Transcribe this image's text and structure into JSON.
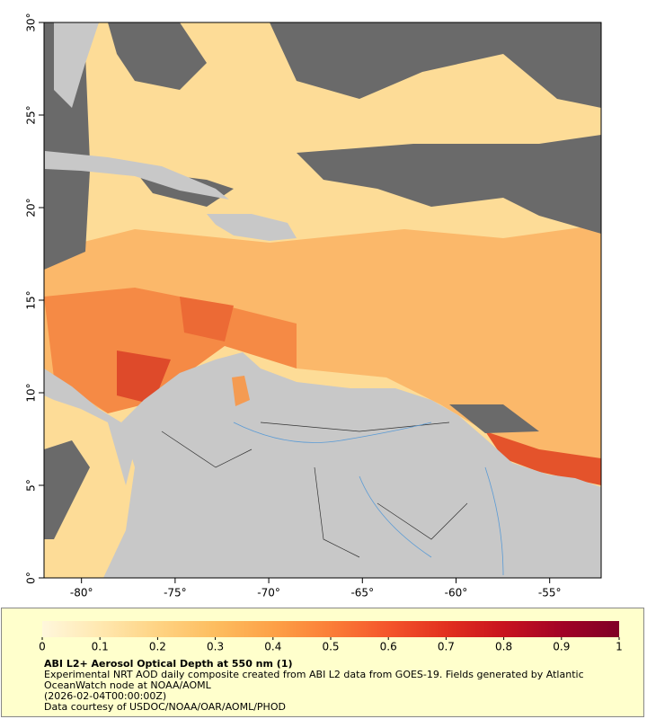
{
  "map": {
    "xlim": [
      -82,
      -52.25
    ],
    "ylim": [
      0,
      30
    ],
    "xticks": [
      {
        "value": -80,
        "label": "-80°"
      },
      {
        "value": -75,
        "label": "-75°"
      },
      {
        "value": -70,
        "label": "-70°"
      },
      {
        "value": -65,
        "label": "-65°"
      },
      {
        "value": -60,
        "label": "-60°"
      },
      {
        "value": -55,
        "label": "-55°"
      }
    ],
    "yticks": [
      {
        "value": 0,
        "label": "0°"
      },
      {
        "value": 5,
        "label": "5°"
      },
      {
        "value": 10,
        "label": "10°"
      },
      {
        "value": 15,
        "label": "15°"
      },
      {
        "value": 20,
        "label": "20°"
      },
      {
        "value": 25,
        "label": "25°"
      },
      {
        "value": 30,
        "label": "30°"
      }
    ]
  },
  "colorbar": {
    "range": [
      0,
      1
    ],
    "ticks": [
      0,
      0.1,
      0.2,
      0.3,
      0.4,
      0.5,
      0.6,
      0.7,
      0.8,
      0.9,
      1
    ],
    "colors": [
      "#fff7dc",
      "#ffe8b0",
      "#fed383",
      "#fdbd5f",
      "#fda147",
      "#fb7e37",
      "#f4552b",
      "#e2301f",
      "#c8131f",
      "#a20326",
      "#7f0026"
    ]
  },
  "caption": {
    "title": "ABI L2+ Aerosol Optical Depth at 550 nm (1)",
    "description": "Experimental NRT AOD daily composite created from ABI L2 data from GOES-19. Fields generated by Atlantic OceanWatch node at NOAA/AOML",
    "timestamp": "(2026-02-04T00:00:00Z)",
    "credit": "Data courtesy of USDOC/NOAA/OAR/AOML/PHOD"
  }
}
